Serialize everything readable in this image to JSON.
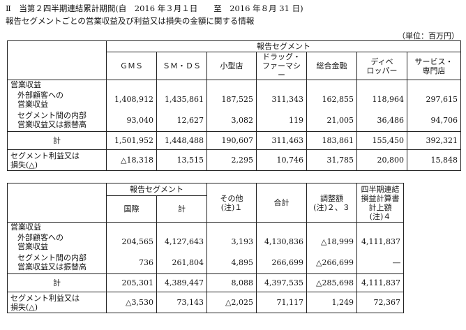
{
  "heading": {
    "line1": "Ⅱ　当第２四半期連結累計期間(自　2016 年３月１日　　至　2016 年８月 31 日)",
    "line2": "報告セグメントごとの営業収益及び利益又は損失の金額に関する情報",
    "unit": "（単位：百万円）"
  },
  "table1": {
    "group_header": "報告セグメント",
    "columns": [
      [
        "ＧＭＳ"
      ],
      [
        "ＳＭ・ＤＳ"
      ],
      [
        "小型店"
      ],
      [
        "ドラッグ・",
        "ファーマシー"
      ],
      [
        "総合金融"
      ],
      [
        "ディベ",
        "ロッパー"
      ],
      [
        "サービス・",
        "専門店"
      ]
    ],
    "rows": {
      "revenue_label": "営業収益",
      "external_label": [
        "外部顧客への",
        "営業収益"
      ],
      "intersegment_label": [
        "セグメント間の内部",
        "営業収益又は振替高"
      ],
      "total_label": "計",
      "profit_label": [
        "セグメント利益又は",
        "損失(△)"
      ]
    },
    "external": [
      "1,408,912",
      "1,435,861",
      "187,525",
      "311,343",
      "162,855",
      "118,964",
      "297,615"
    ],
    "intersegment": [
      "93,040",
      "12,627",
      "3,082",
      "119",
      "21,005",
      "36,486",
      "94,706"
    ],
    "total": [
      "1,501,952",
      "1,448,488",
      "190,607",
      "311,463",
      "183,861",
      "155,450",
      "392,321"
    ],
    "profit": [
      "△18,318",
      "13,515",
      "2,295",
      "10,746",
      "31,785",
      "20,800",
      "15,848"
    ]
  },
  "table2": {
    "group_header": "報告セグメント",
    "sub_columns": [
      "国際",
      "計"
    ],
    "columns": [
      [
        "その他",
        "(注)１"
      ],
      [
        "合計"
      ],
      [
        "調整額",
        "(注)２、３"
      ],
      [
        "四半期連結",
        "損益計算書",
        "計上額",
        "(注)４"
      ]
    ],
    "rows": {
      "revenue_label": "営業収益",
      "external_label": [
        "外部顧客への",
        "営業収益"
      ],
      "intersegment_label": [
        "セグメント間の内部",
        "営業収益又は振替高"
      ],
      "total_label": "計",
      "profit_label": [
        "セグメント利益又は",
        "損失(△)"
      ]
    },
    "external": [
      "204,565",
      "4,127,643",
      "3,193",
      "4,130,836",
      "△18,999",
      "4,111,837"
    ],
    "intersegment": [
      "736",
      "261,804",
      "4,895",
      "266,699",
      "△266,699",
      "―"
    ],
    "total": [
      "205,301",
      "4,389,447",
      "8,088",
      "4,397,535",
      "△285,698",
      "4,111,837"
    ],
    "profit": [
      "△3,530",
      "73,143",
      "△2,025",
      "71,117",
      "1,249",
      "72,367"
    ]
  }
}
